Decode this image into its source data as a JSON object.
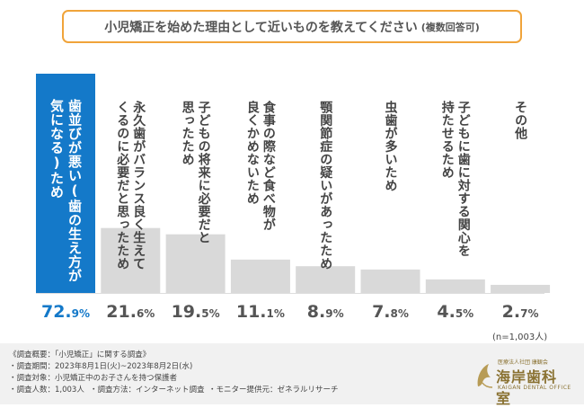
{
  "title": {
    "main": "小児矯正を始めた理由として近いものを教えてください",
    "note": "(複数回答可)"
  },
  "colors": {
    "highlight": "#1479c9",
    "bar": "#d9d9d9",
    "accent": "#f0a43a"
  },
  "chart_data": {
    "type": "bar",
    "title": "小児矯正を始めた理由として近いものを教えてください (複数回答可)",
    "unit": "%",
    "ylim": [
      0,
      72.9
    ],
    "categories": [
      "歯並びが悪い(歯の生え方が気になる)ため",
      "永久歯がバランス良く生えてくるのに必要だと思ったため",
      "子どもの将来に必要だと思ったため",
      "食事の際など食べ物が良くかめないため",
      "顎関節症の疑いがあったため",
      "虫歯が多いため",
      "子どもに歯に対する関心を持たせるため",
      "その他"
    ],
    "values": [
      72.9,
      21.6,
      19.5,
      11.1,
      8.9,
      7.8,
      4.5,
      2.7
    ],
    "value_labels": [
      {
        "int": "72.",
        "dec": "9%"
      },
      {
        "int": "21.",
        "dec": "6%"
      },
      {
        "int": "19.",
        "dec": "5%"
      },
      {
        "int": "11.",
        "dec": "1%"
      },
      {
        "int": "8.",
        "dec": "9%"
      },
      {
        "int": "7.",
        "dec": "8%"
      },
      {
        "int": "4.",
        "dec": "5%"
      },
      {
        "int": "2.",
        "dec": "7%"
      }
    ],
    "label_lines": [
      [
        "歯並びが悪い(歯の生え方が",
        "気になる)ため"
      ],
      [
        "永久歯がバランス良く生えて",
        "くるのに必要だと思ったため"
      ],
      [
        "子どもの将来に必要だと",
        "思ったため"
      ],
      [
        "食事の際など食べ物が",
        "良くかめないため"
      ],
      [
        "顎関節症の疑いがあったため"
      ],
      [
        "虫歯が多いため"
      ],
      [
        "子どもに歯に対する関心を",
        "持たせるため"
      ],
      [
        "その他"
      ]
    ],
    "highlight_index": 0
  },
  "sample_note": "(n=1,003人)",
  "footer": {
    "heading": "《調査概要：「小児矯正」に関する調査》",
    "period": "・調査期間：2023年8月1日(火)~2023年8月2日(水)",
    "target": "・調査対象：小児矯正中のお子さんを持つ保護者",
    "count": "・調査人数：1,003人",
    "method": "・調査方法：インターネット調査",
    "provider": "・モニター提供元：ゼネラルリサーチ"
  },
  "logo": {
    "org": "医療法人社団 康観会",
    "name": "海岸歯科室",
    "en": "KAIGAN DENTAL OFFICE"
  }
}
